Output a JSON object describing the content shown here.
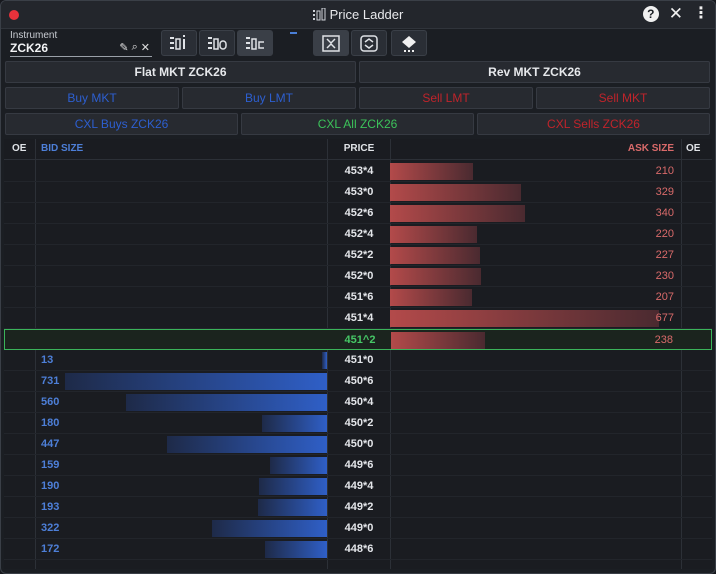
{
  "window": {
    "title": "Price Ladder",
    "help_label": "?",
    "close_label": "✕",
    "menu_label": "⋮"
  },
  "instrument": {
    "label": "Instrument",
    "value": "ZCK26"
  },
  "actions": {
    "flat": "Flat MKT ZCK26",
    "reverse": "Rev MKT ZCK26",
    "buy_mkt": "Buy MKT",
    "buy_lmt": "Buy LMT",
    "sell_lmt": "Sell LMT",
    "sell_mkt": "Sell MKT",
    "cxl_buys": "CXL Buys ZCK26",
    "cxl_all": "CXL All ZCK26",
    "cxl_sells": "CXL Sells ZCK26"
  },
  "headers": {
    "oe_left": "OE",
    "bid_size": "BID SIZE",
    "price": "PRICE",
    "ask_size": "ASK SIZE",
    "oe_right": "OE"
  },
  "colors": {
    "ask": "#d96a6a",
    "bid": "#4d7fd8",
    "inside_market": "#3bb45a"
  },
  "ladder": {
    "max_size": 731,
    "rows": [
      {
        "price": "453*4",
        "ask": "210",
        "bid": ""
      },
      {
        "price": "453*0",
        "ask": "329",
        "bid": ""
      },
      {
        "price": "452*6",
        "ask": "340",
        "bid": ""
      },
      {
        "price": "452*4",
        "ask": "220",
        "bid": ""
      },
      {
        "price": "452*2",
        "ask": "227",
        "bid": ""
      },
      {
        "price": "452*0",
        "ask": "230",
        "bid": ""
      },
      {
        "price": "451*6",
        "ask": "207",
        "bid": ""
      },
      {
        "price": "451*4",
        "ask": "677",
        "bid": ""
      },
      {
        "price": "451^2",
        "ask": "238",
        "bid": "",
        "inside": true
      },
      {
        "price": "451*0",
        "ask": "",
        "bid": "13"
      },
      {
        "price": "450*6",
        "ask": "",
        "bid": "731"
      },
      {
        "price": "450*4",
        "ask": "",
        "bid": "560"
      },
      {
        "price": "450*2",
        "ask": "",
        "bid": "180"
      },
      {
        "price": "450*0",
        "ask": "",
        "bid": "447"
      },
      {
        "price": "449*6",
        "ask": "",
        "bid": "159"
      },
      {
        "price": "449*4",
        "ask": "",
        "bid": "190"
      },
      {
        "price": "449*2",
        "ask": "",
        "bid": "193"
      },
      {
        "price": "449*0",
        "ask": "",
        "bid": "322"
      },
      {
        "price": "448*6",
        "ask": "",
        "bid": "172"
      }
    ]
  }
}
